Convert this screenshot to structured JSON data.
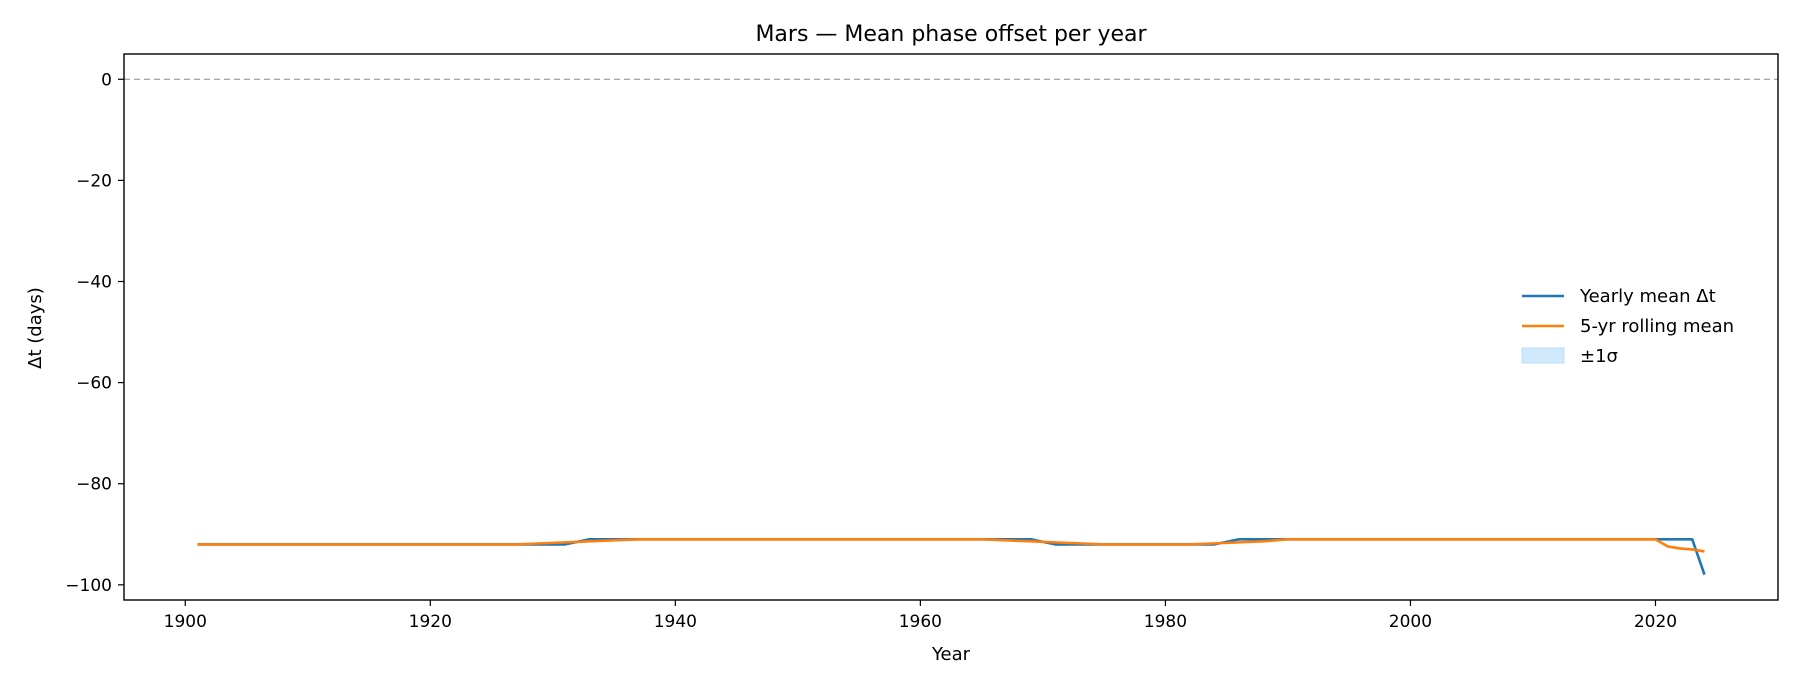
{
  "chart_data": {
    "type": "line",
    "title": "Mars — Mean phase offset per year",
    "xlabel": "Year",
    "ylabel": "Δt (days)",
    "xlim": [
      1895,
      2030
    ],
    "ylim": [
      -103,
      5
    ],
    "xticks": [
      1900,
      1920,
      1940,
      1960,
      1980,
      2000,
      2020
    ],
    "yticks": [
      0,
      -20,
      -40,
      -60,
      -80,
      -100
    ],
    "ytick_labels": [
      "0",
      "−20",
      "−40",
      "−60",
      "−80",
      "−100"
    ],
    "grid": false,
    "reference_line": {
      "y": 0,
      "style": "dashed",
      "color": "#aaaaaa"
    },
    "legend_position": "center-right",
    "series": [
      {
        "name": "Yearly mean Δt",
        "color": "#1f77b4",
        "x": [
          1901,
          1931,
          1933,
          1969,
          1971,
          1984,
          1986,
          2023,
          2024
        ],
        "y": [
          -92,
          -92,
          -91,
          -91,
          -92,
          -92,
          -91,
          -91,
          -98
        ]
      },
      {
        "name": "5-yr rolling mean",
        "color": "#ff7f0e",
        "x": [
          1901,
          1927,
          1929,
          1931,
          1933,
          1935,
          1937,
          1965,
          1967,
          1969,
          1971,
          1973,
          1975,
          1982,
          1984,
          1986,
          1988,
          1990,
          2020,
          2021,
          2022,
          2023,
          2024
        ],
        "y": [
          -92,
          -92,
          -91.8,
          -91.6,
          -91.4,
          -91.2,
          -91,
          -91,
          -91.2,
          -91.4,
          -91.6,
          -91.8,
          -92,
          -92,
          -91.8,
          -91.6,
          -91.4,
          -91,
          -91,
          -92.4,
          -92.8,
          -93.0,
          -93.4
        ]
      }
    ],
    "band": {
      "name": "±1σ",
      "color": "#cfe8fb"
    }
  }
}
